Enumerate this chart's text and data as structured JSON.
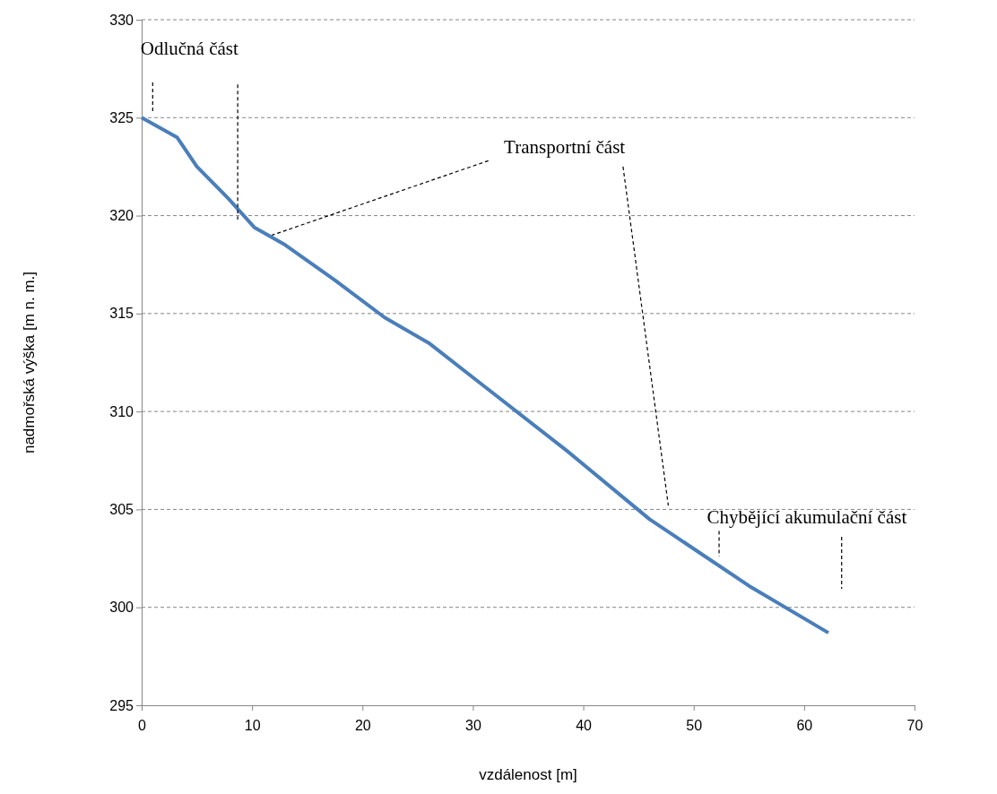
{
  "chart_data": {
    "type": "line",
    "xlabel": "vzdálenost [m]",
    "ylabel": "nadmořská výška [m n. m.]",
    "x": [
      0,
      3.2,
      5,
      7.8,
      10.2,
      13,
      17.5,
      22,
      26,
      31,
      38.5,
      46,
      50.5,
      55,
      62.2
    ],
    "series": [
      {
        "color": "#4a7ebb",
        "values": [
          325,
          324,
          322.5,
          320.9,
          319.4,
          318.5,
          316.7,
          314.8,
          313.5,
          311.3,
          308,
          304.5,
          302.8,
          301.1,
          298.7
        ]
      }
    ],
    "xlim": [
      0,
      70
    ],
    "xticks": [
      0,
      10,
      20,
      30,
      40,
      50,
      60,
      70
    ],
    "ylim": [
      295,
      330
    ],
    "yticks": [
      295,
      300,
      305,
      310,
      315,
      320,
      325,
      330
    ],
    "grid": "y",
    "marker": "none",
    "line_style": "solid",
    "annotations": [
      "Odlučná část",
      {
        "text": "Transportní část",
        "x": 11.8,
        "y": 319
      },
      "Chybějící akumulační část"
    ]
  }
}
